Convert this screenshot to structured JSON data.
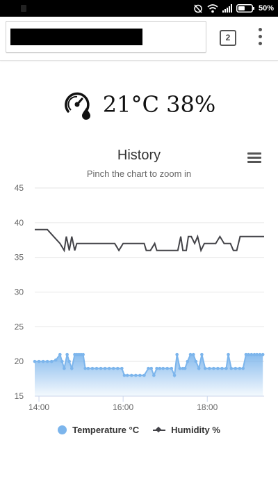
{
  "status_bar": {
    "battery_percent": "50%",
    "icons": [
      "alarm-off-icon",
      "wifi-icon",
      "signal-icon",
      "battery-icon"
    ]
  },
  "browser": {
    "tab_count": "2",
    "icons": [
      "tabs-icon",
      "overflow-menu-icon"
    ]
  },
  "reading": {
    "text": "21°C 38%",
    "icon": "gauge-droplet-icon"
  },
  "chart_data": {
    "type": "line",
    "title": "History",
    "subtitle": "Pinch the chart to zoom in",
    "x_tick_labels": [
      "14:00",
      "16:00",
      "18:00"
    ],
    "x_ticks_hours": [
      14,
      16,
      18
    ],
    "x_range_hours": [
      13.9,
      19.35
    ],
    "y_tick_labels": [
      "15",
      "20",
      "25",
      "30",
      "35",
      "40",
      "45"
    ],
    "ylim": [
      15,
      45
    ],
    "grid": true,
    "legend_position": "bottom",
    "series": [
      {
        "name": "Temperature °C",
        "style": "area",
        "color": "#7cb5ec",
        "x": [
          13.9,
          14.0,
          14.1,
          14.2,
          14.3,
          14.4,
          14.5,
          14.55,
          14.6,
          14.67,
          14.72,
          14.78,
          14.85,
          14.9,
          14.95,
          15.0,
          15.05,
          15.1,
          15.17,
          15.27,
          15.37,
          15.47,
          15.57,
          15.67,
          15.77,
          15.87,
          15.97,
          16.03,
          16.1,
          16.2,
          16.3,
          16.4,
          16.5,
          16.6,
          16.67,
          16.73,
          16.8,
          16.87,
          16.95,
          17.05,
          17.15,
          17.22,
          17.28,
          17.35,
          17.42,
          17.47,
          17.53,
          17.6,
          17.67,
          17.73,
          17.8,
          17.87,
          17.95,
          18.05,
          18.15,
          18.25,
          18.35,
          18.45,
          18.5,
          18.57,
          18.67,
          18.77,
          18.85,
          18.92,
          18.98,
          19.05,
          19.12,
          19.18,
          19.25,
          19.32
        ],
        "values": [
          20,
          20,
          20,
          20,
          20,
          20.2,
          21,
          20,
          19,
          21,
          20,
          19,
          21,
          21,
          21,
          21,
          21,
          19,
          19,
          19,
          19,
          19,
          19,
          19,
          19,
          19,
          19,
          18,
          18,
          18,
          18,
          18,
          18,
          19,
          19,
          18,
          19,
          19,
          19,
          19,
          19,
          18,
          21,
          19,
          19,
          19,
          20,
          21,
          21,
          20,
          19,
          21,
          19,
          19,
          19,
          19,
          19,
          19,
          21,
          19,
          19,
          19,
          19,
          21,
          21,
          21,
          21,
          21,
          21,
          21
        ]
      },
      {
        "name": "Humidity %",
        "style": "line",
        "color": "#434348",
        "x": [
          13.9,
          14.05,
          14.2,
          14.35,
          14.5,
          14.6,
          14.65,
          14.72,
          14.78,
          14.85,
          14.9,
          15.0,
          15.2,
          15.5,
          15.8,
          15.9,
          16.0,
          16.3,
          16.5,
          16.55,
          16.65,
          16.75,
          16.8,
          17.0,
          17.2,
          17.3,
          17.37,
          17.42,
          17.5,
          17.55,
          17.62,
          17.7,
          17.77,
          17.85,
          17.93,
          18.05,
          18.2,
          18.3,
          18.4,
          18.5,
          18.55,
          18.62,
          18.7,
          18.78,
          18.85,
          19.0,
          19.2,
          19.35
        ],
        "values": [
          39,
          39,
          39,
          38,
          37,
          36,
          38,
          36,
          38,
          36,
          37,
          37,
          37,
          37,
          37,
          36,
          37,
          37,
          37,
          36,
          36,
          37,
          36,
          36,
          36,
          36,
          38,
          36,
          36,
          38,
          38,
          37,
          38,
          36,
          37,
          37,
          37,
          38,
          37,
          37,
          37,
          36,
          36,
          38,
          38,
          38,
          38,
          38
        ]
      }
    ]
  }
}
